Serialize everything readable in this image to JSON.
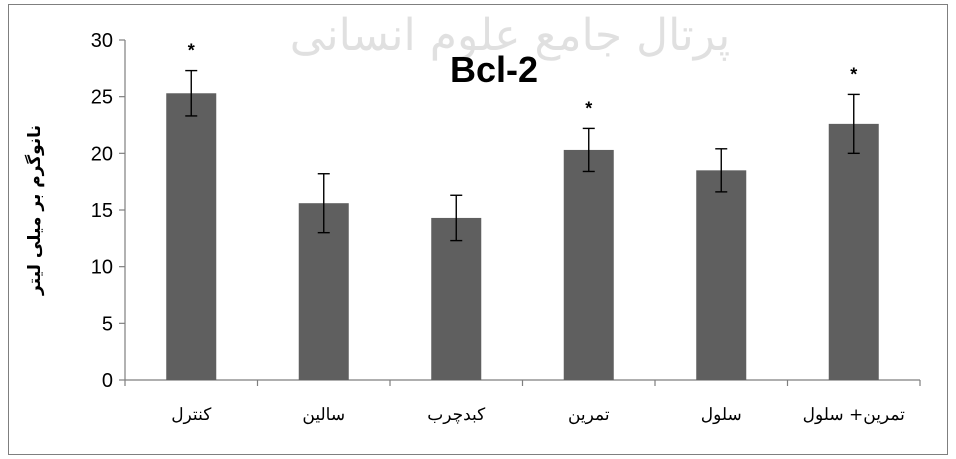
{
  "chart_data": {
    "type": "bar",
    "title": "Bcl-2",
    "ylabel": "نانوگرم بر میلی لیتر",
    "xlabel": "",
    "ylim": [
      0,
      30
    ],
    "yticks": [
      0,
      5,
      10,
      15,
      20,
      25,
      30
    ],
    "grid": false,
    "legend": "none",
    "categories": [
      "کنترل",
      "سالین",
      "کبدچرب",
      "تمرین",
      "سلول",
      "تمرین+ سلول"
    ],
    "values": [
      25.3,
      15.6,
      14.3,
      20.3,
      18.5,
      22.6
    ],
    "error": [
      2.0,
      2.6,
      2.0,
      1.9,
      1.9,
      2.6
    ],
    "significance": [
      "*",
      "",
      "",
      "*",
      "",
      "*"
    ],
    "bar_color": "#5f5f5f",
    "watermark": "پرتال جامع علوم انسانی"
  }
}
